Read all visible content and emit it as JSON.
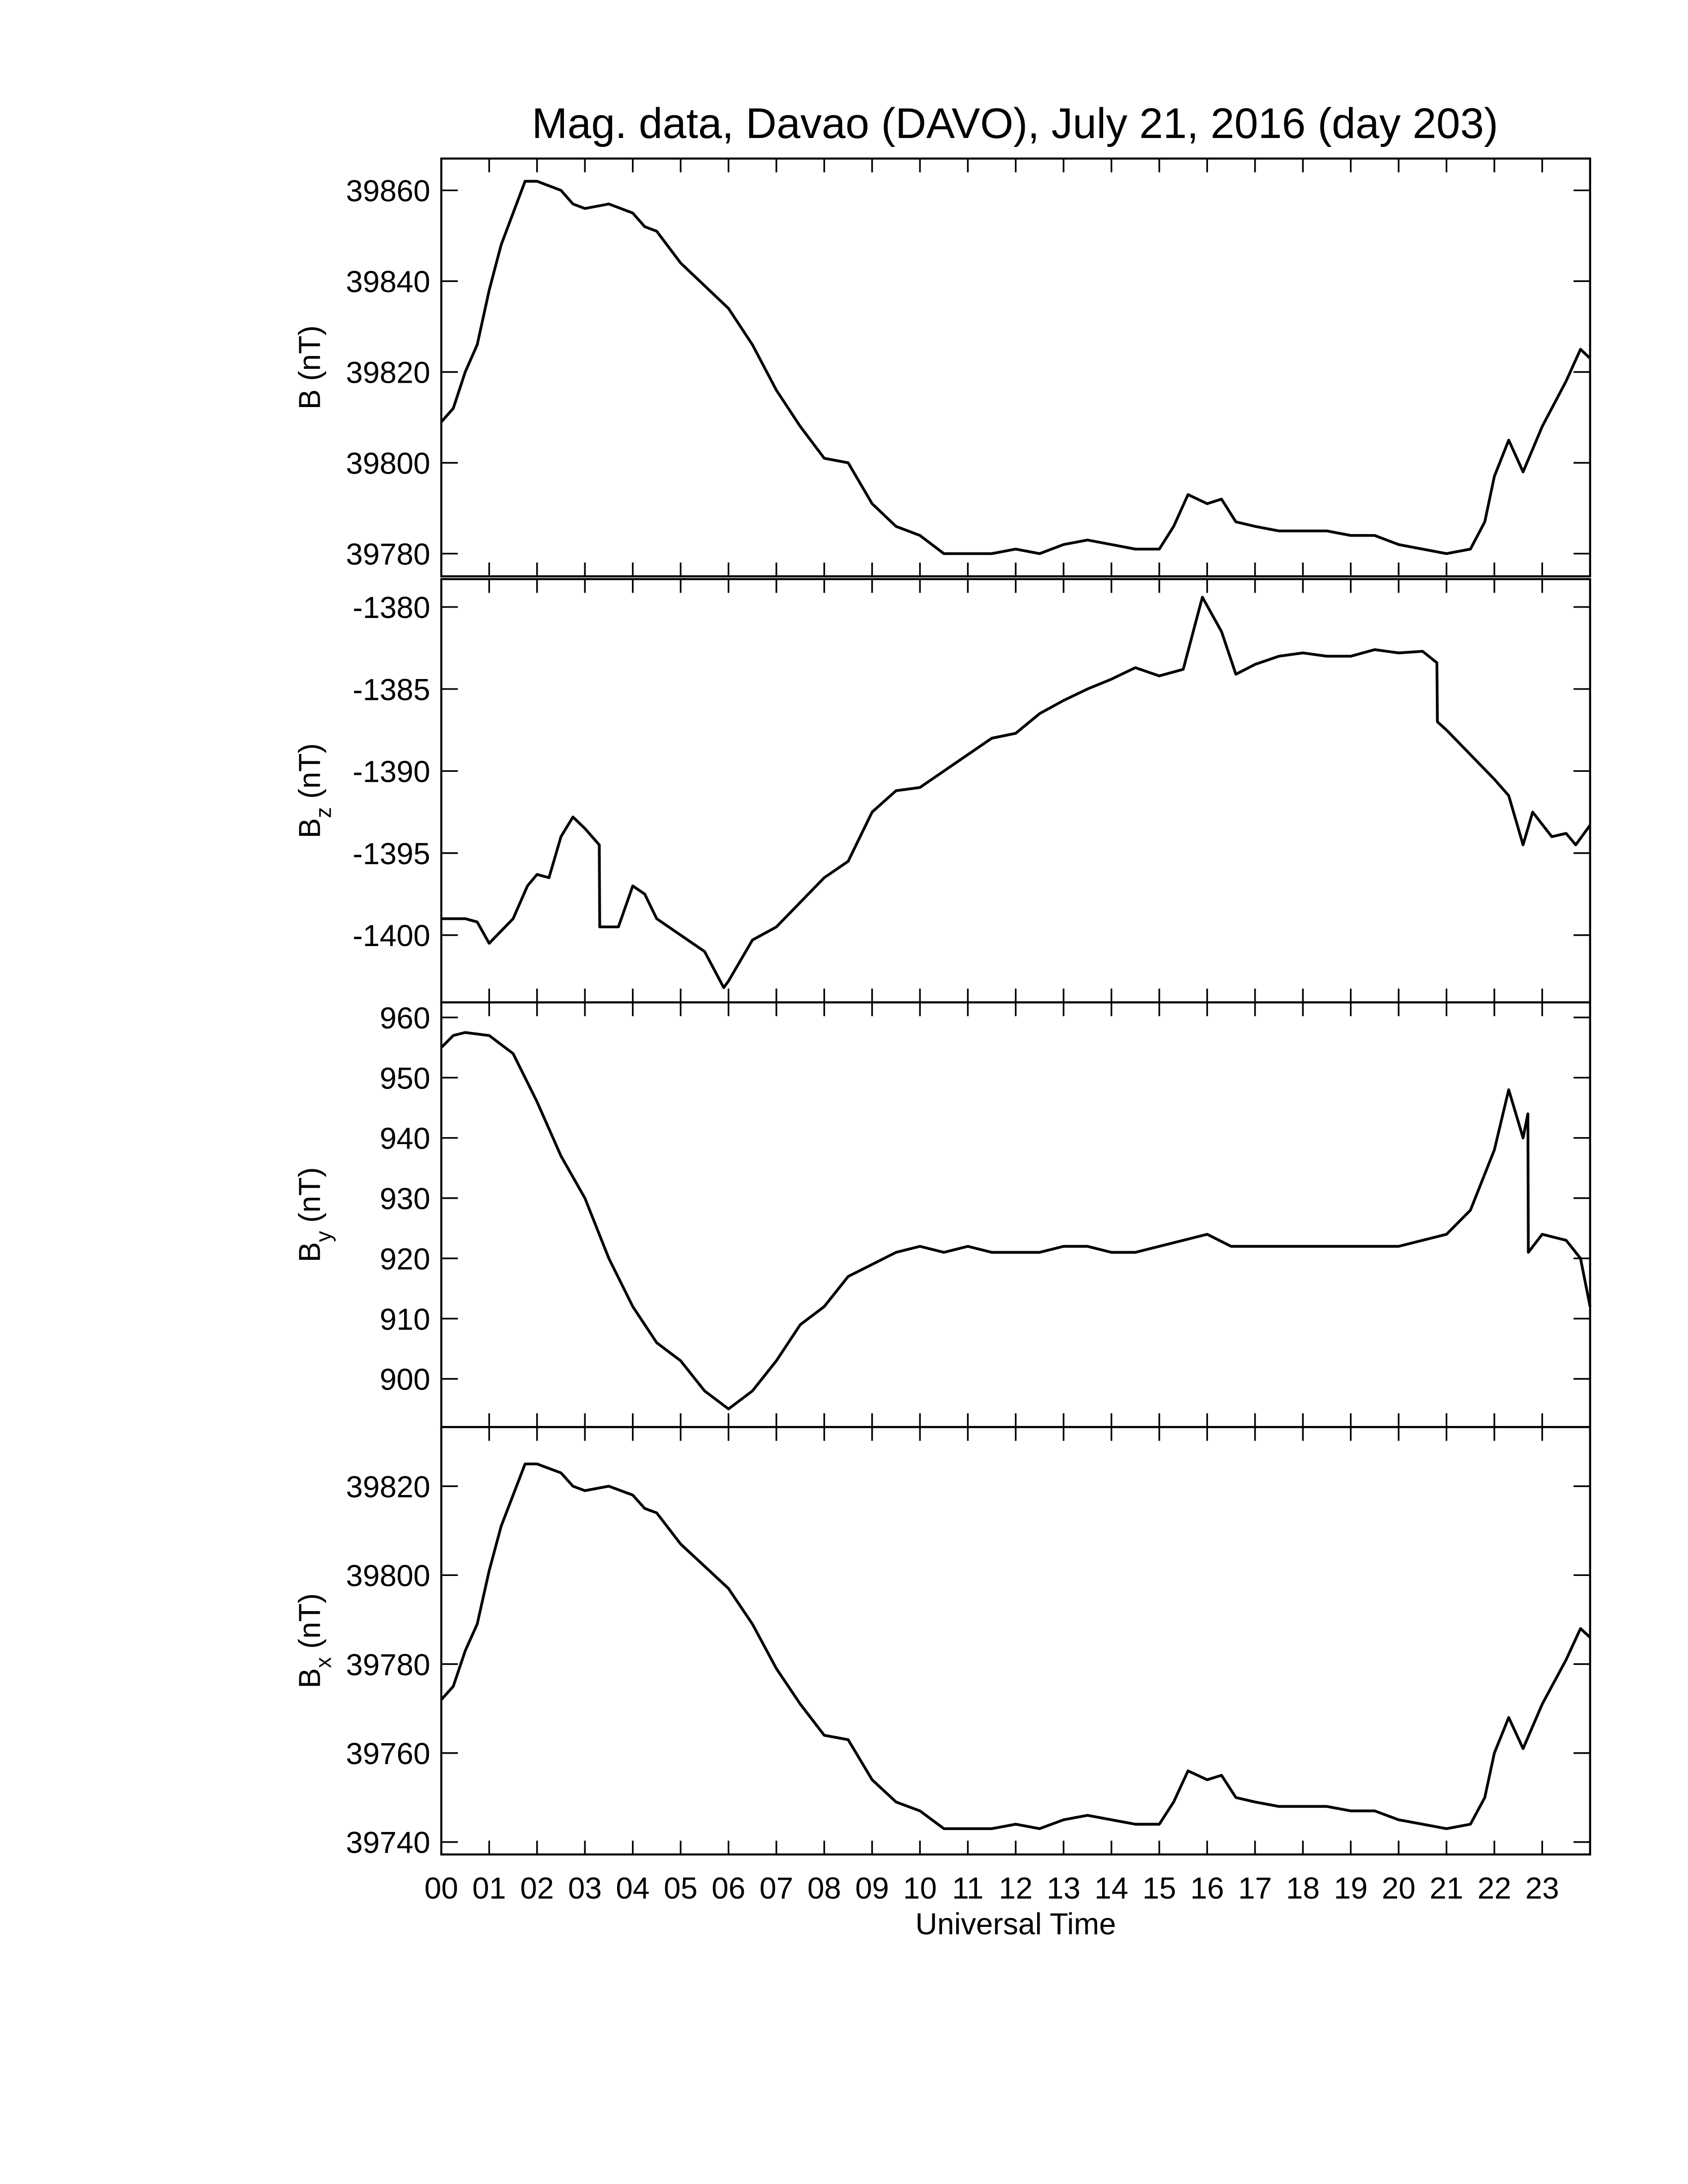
{
  "chart_data": [
    {
      "type": "line",
      "title": "Mag. data, Davao (DAVO), July 21, 2016 (day 203)",
      "ylabel": {
        "symbol": "B",
        "unit": "(nT)"
      },
      "ylim": [
        39775,
        39867
      ],
      "yticks": [
        39780,
        39800,
        39820,
        39840,
        39860
      ],
      "color": "#000000",
      "x": [
        0,
        0.25,
        0.5,
        0.75,
        1,
        1.25,
        1.5,
        1.75,
        2,
        2.5,
        2.75,
        3,
        3.5,
        4,
        4.25,
        4.5,
        5,
        5.5,
        6,
        6.5,
        7,
        7.5,
        8,
        8.5,
        9,
        9.5,
        10,
        10.5,
        11,
        11.5,
        12,
        12.5,
        13,
        13.5,
        14,
        14.5,
        15,
        15.3,
        15.6,
        16,
        16.3,
        16.6,
        17,
        17.5,
        18,
        18.5,
        19,
        19.5,
        20,
        20.5,
        21,
        21.5,
        21.8,
        22,
        22.3,
        22.6,
        23,
        23.5,
        23.8,
        24
      ],
      "values": [
        39809,
        39812,
        39820,
        39826,
        39838,
        39848,
        39855,
        39862,
        39862,
        39860,
        39857,
        39856,
        39857,
        39855,
        39852,
        39851,
        39844,
        39839,
        39834,
        39826,
        39816,
        39808,
        39801,
        39800,
        39791,
        39786,
        39784,
        39780,
        39780,
        39780,
        39781,
        39780,
        39782,
        39783,
        39782,
        39781,
        39781,
        39786,
        39793,
        39791,
        39792,
        39787,
        39786,
        39785,
        39785,
        39785,
        39784,
        39784,
        39782,
        39781,
        39780,
        39781,
        39787,
        39797,
        39805,
        39798,
        39808,
        39818,
        39825,
        39823
      ]
    },
    {
      "type": "line",
      "ylabel": {
        "symbol": "B",
        "subscript": "z",
        "unit": "(nT)"
      },
      "ylim": [
        -1404.1,
        -1378.3
      ],
      "yticks": [
        -1400,
        -1395,
        -1390,
        -1385,
        -1380
      ],
      "color": "#000000",
      "x": [
        0,
        0.5,
        0.75,
        1,
        1.5,
        1.8,
        2,
        2.25,
        2.5,
        2.75,
        3,
        3.3,
        3.31,
        3.7,
        4,
        4.25,
        4.5,
        5,
        5.5,
        5.9,
        6,
        6.5,
        7,
        7.5,
        8,
        8.5,
        9,
        9.5,
        10,
        10.5,
        11,
        11.5,
        12,
        12.5,
        13,
        13.5,
        14,
        14.5,
        15,
        15.5,
        15.9,
        16.3,
        16.6,
        17,
        17.5,
        18,
        18.5,
        19,
        19.5,
        20,
        20.5,
        20.8,
        20.81,
        21,
        21.5,
        22,
        22.3,
        22.6,
        22.8,
        23.2,
        23.5,
        23.7,
        24
      ],
      "values": [
        -1399,
        -1399,
        -1399.2,
        -1400.5,
        -1399,
        -1397,
        -1396.3,
        -1396.5,
        -1394,
        -1392.8,
        -1393.5,
        -1394.5,
        -1399.5,
        -1399.5,
        -1397,
        -1397.5,
        -1399,
        -1400,
        -1401,
        -1403.2,
        -1402.8,
        -1400.3,
        -1399.5,
        -1398,
        -1396.5,
        -1395.5,
        -1392.5,
        -1391.2,
        -1391,
        -1390,
        -1389,
        -1388,
        -1387.7,
        -1386.5,
        -1385.7,
        -1385,
        -1384.4,
        -1383.7,
        -1384.2,
        -1383.8,
        -1379.4,
        -1381.5,
        -1384.1,
        -1383.5,
        -1383,
        -1382.8,
        -1383,
        -1383,
        -1382.6,
        -1382.8,
        -1382.7,
        -1383.4,
        -1387,
        -1387.5,
        -1389,
        -1390.5,
        -1391.5,
        -1394.5,
        -1392.5,
        -1394,
        -1393.8,
        -1394.5,
        -1393.3
      ]
    },
    {
      "type": "line",
      "ylabel": {
        "symbol": "B",
        "subscript": "y",
        "unit": "(nT)"
      },
      "ylim": [
        892,
        962.5
      ],
      "yticks": [
        900,
        910,
        920,
        930,
        940,
        950,
        960
      ],
      "color": "#000000",
      "x": [
        0,
        0.25,
        0.5,
        1,
        1.5,
        2,
        2.5,
        3,
        3.5,
        4,
        4.5,
        5,
        5.5,
        6,
        6.5,
        7,
        7.5,
        8,
        8.5,
        9,
        9.5,
        10,
        10.5,
        11,
        11.5,
        12,
        12.5,
        13,
        13.5,
        14,
        14.5,
        15,
        15.5,
        16,
        16.5,
        17,
        17.5,
        18,
        18.5,
        19,
        19.5,
        20,
        20.5,
        21,
        21.5,
        22,
        22.3,
        22.6,
        22.7,
        22.71,
        23,
        23.5,
        23.8,
        24
      ],
      "values": [
        955,
        957,
        957.5,
        957,
        954,
        946,
        937,
        930,
        920,
        912,
        906,
        903,
        898,
        895,
        898,
        903,
        909,
        912,
        917,
        919,
        921,
        922,
        921,
        922,
        921,
        921,
        921,
        922,
        922,
        921,
        921,
        922,
        923,
        924,
        922,
        922,
        922,
        922,
        922,
        922,
        922,
        922,
        923,
        924,
        928,
        938,
        948,
        940,
        944,
        921,
        924,
        923,
        920,
        912
      ]
    },
    {
      "type": "line",
      "ylabel": {
        "symbol": "B",
        "subscript": "x",
        "unit": "(nT)"
      },
      "ylim": [
        39737.2,
        39833.3
      ],
      "yticks": [
        39740,
        39760,
        39780,
        39800,
        39820
      ],
      "color": "#000000",
      "xlabel": "Universal Time",
      "xlim": [
        0,
        24
      ],
      "xticks": [
        {
          "value": 0,
          "label": "00"
        },
        {
          "value": 1,
          "label": "01"
        },
        {
          "value": 2,
          "label": "02"
        },
        {
          "value": 3,
          "label": "03"
        },
        {
          "value": 4,
          "label": "04"
        },
        {
          "value": 5,
          "label": "05"
        },
        {
          "value": 6,
          "label": "06"
        },
        {
          "value": 7,
          "label": "07"
        },
        {
          "value": 8,
          "label": "08"
        },
        {
          "value": 9,
          "label": "09"
        },
        {
          "value": 10,
          "label": "10"
        },
        {
          "value": 11,
          "label": "11"
        },
        {
          "value": 12,
          "label": "12"
        },
        {
          "value": 13,
          "label": "13"
        },
        {
          "value": 14,
          "label": "14"
        },
        {
          "value": 15,
          "label": "15"
        },
        {
          "value": 16,
          "label": "16"
        },
        {
          "value": 17,
          "label": "17"
        },
        {
          "value": 18,
          "label": "18"
        },
        {
          "value": 19,
          "label": "19"
        },
        {
          "value": 20,
          "label": "20"
        },
        {
          "value": 21,
          "label": "21"
        },
        {
          "value": 22,
          "label": "22"
        },
        {
          "value": 23,
          "label": "23"
        }
      ],
      "x": [
        0,
        0.25,
        0.5,
        0.75,
        1,
        1.25,
        1.5,
        1.75,
        2,
        2.5,
        2.75,
        3,
        3.5,
        4,
        4.25,
        4.5,
        5,
        5.5,
        6,
        6.5,
        7,
        7.5,
        8,
        8.5,
        9,
        9.5,
        10,
        10.5,
        11,
        11.5,
        12,
        12.5,
        13,
        13.5,
        14,
        14.5,
        15,
        15.3,
        15.6,
        16,
        16.3,
        16.6,
        17,
        17.5,
        18,
        18.5,
        19,
        19.5,
        20,
        20.5,
        21,
        21.5,
        21.8,
        22,
        22.3,
        22.6,
        23,
        23.5,
        23.8,
        24
      ],
      "values": [
        39772,
        39775,
        39783,
        39789,
        39801,
        39811,
        39818,
        39825,
        39825,
        39823,
        39820,
        39819,
        39820,
        39818,
        39815,
        39814,
        39807,
        39802,
        39797,
        39789,
        39779,
        39771,
        39764,
        39763,
        39754,
        39749,
        39747,
        39743,
        39743,
        39743,
        39744,
        39743,
        39745,
        39746,
        39745,
        39744,
        39744,
        39749,
        39756,
        39754,
        39755,
        39750,
        39749,
        39748,
        39748,
        39748,
        39747,
        39747,
        39745,
        39744,
        39743,
        39744,
        39750,
        39760,
        39768,
        39761,
        39771,
        39781,
        39788,
        39786
      ]
    }
  ]
}
